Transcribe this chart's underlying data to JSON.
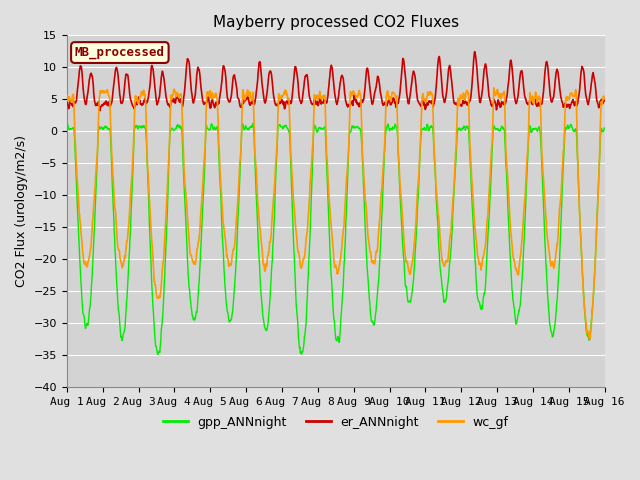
{
  "title": "Mayberry processed CO2 Fluxes",
  "ylabel": "CO2 Flux (urology/m2/s)",
  "ylim": [
    -40,
    15
  ],
  "yticks": [
    -40,
    -35,
    -30,
    -25,
    -20,
    -15,
    -10,
    -5,
    0,
    5,
    10,
    15
  ],
  "xtick_labels": [
    "Aug 1",
    "Aug 2",
    "Aug 3",
    "Aug 4",
    "Aug 5",
    "Aug 6",
    "Aug 7",
    "Aug 8",
    "Aug 9",
    "Aug 10",
    "Aug 11",
    "Aug 12",
    "Aug 13",
    "Aug 14",
    "Aug 15",
    "Aug 16"
  ],
  "legend_entries": [
    "gpp_ANNnight",
    "er_ANNnight",
    "wc_gf"
  ],
  "legend_colors": [
    "#00ee00",
    "#cc0000",
    "#ff9900"
  ],
  "title_fontsize": 11,
  "axis_label_fontsize": 9,
  "tick_fontsize": 8,
  "legend_fontsize": 9,
  "bg_color": "#e0e0e0",
  "plot_bg_color": "#d3d3d3",
  "grid_color": "#ffffff",
  "mb_box_bg": "#ffffe0",
  "mb_box_edge": "#8b0000",
  "mb_text_color": "#8b0000",
  "line_colors": {
    "gpp": "#00ee00",
    "er": "#cc0000",
    "wc": "#ff9900"
  },
  "line_widths": {
    "gpp": 1.0,
    "er": 1.2,
    "wc": 1.2
  },
  "n_days": 15,
  "n_per_day": 96,
  "seed": 42
}
